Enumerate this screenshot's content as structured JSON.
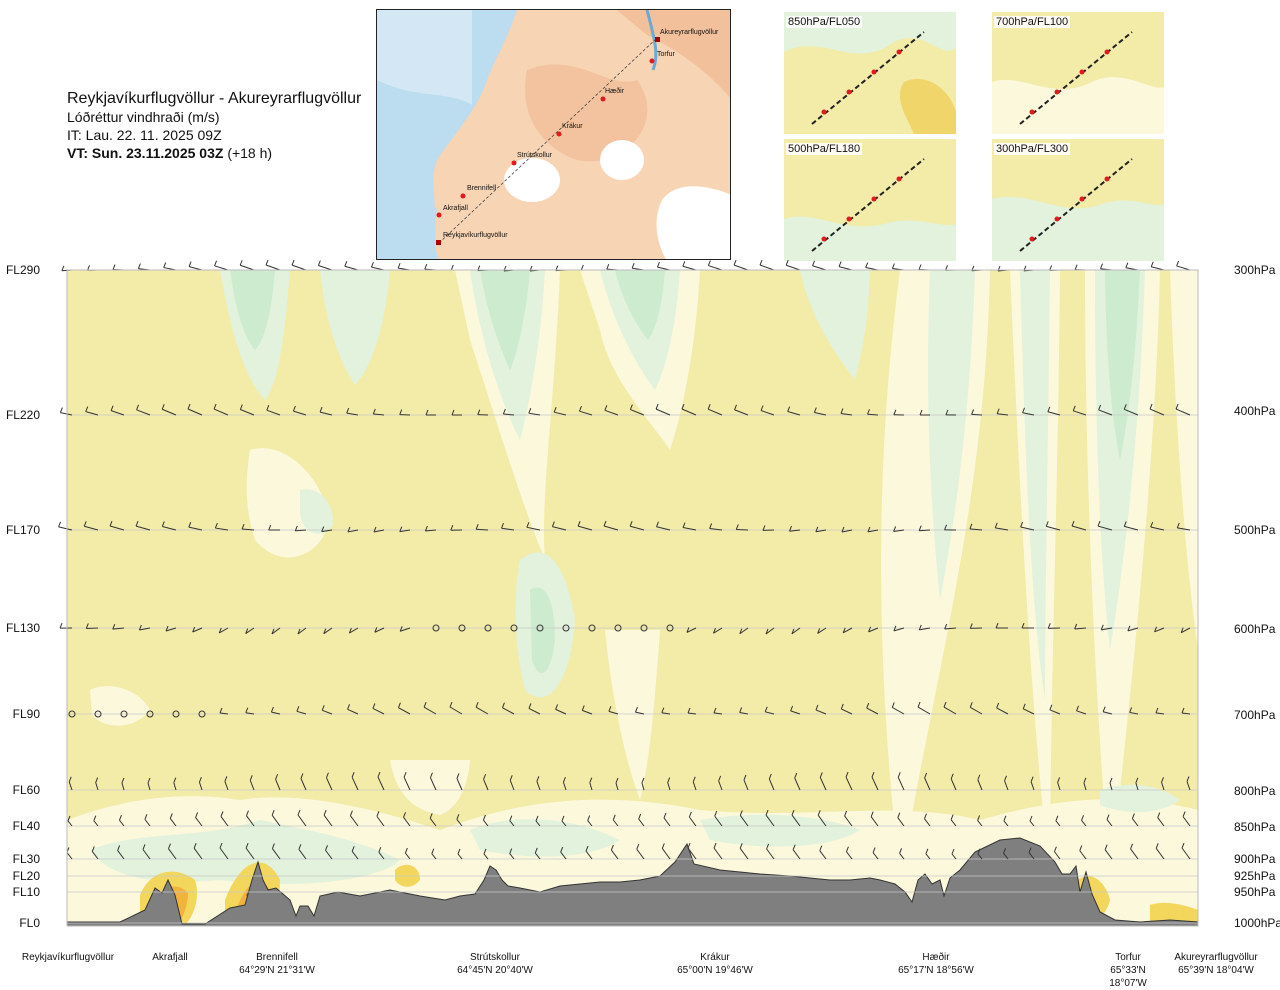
{
  "header": {
    "route": "Reykjavíkurflugvöllur - Akureyrarflugvöllur",
    "variable": "Lóðréttur vindhraði (m/s)",
    "issue_time": "IT: Lau. 22. 11. 2025 09Z",
    "valid_time_bold": "VT: Sun. 23.11.2025 03Z",
    "valid_time_offset": "(+18 h)"
  },
  "map": {
    "waypoints": [
      "Akureyrarflugvöllur",
      "Torfur",
      "Hæðir",
      "Krákur",
      "Strútskollur",
      "Brennifell",
      "Akrafjall",
      "Reykjavíkurflugvöllur"
    ]
  },
  "panels": [
    {
      "label": "850hPa/FL050"
    },
    {
      "label": "700hPa/FL100"
    },
    {
      "label": "500hPa/FL180"
    },
    {
      "label": "300hPa/FL300"
    }
  ],
  "levels_left": [
    "FL290",
    "FL220",
    "FL170",
    "FL130",
    "FL90",
    "FL60",
    "FL40",
    "FL30",
    "FL20",
    "FL10",
    "FL0"
  ],
  "levels_right": [
    "300hPa",
    "400hPa",
    "500hPa",
    "600hPa",
    "700hPa",
    "800hPa",
    "850hPa",
    "900hPa",
    "925hPa",
    "950hPa",
    "1000hPa"
  ],
  "places": [
    {
      "name": "Reykjavíkurflugvöllur",
      "coord": ""
    },
    {
      "name": "Akrafjall",
      "coord": ""
    },
    {
      "name": "Brennifell",
      "coord": "64°29'N 21°31'W"
    },
    {
      "name": "Strútskollur",
      "coord": "64°45'N 20°40'W"
    },
    {
      "name": "Krákur",
      "coord": "65°00'N 19°46'W"
    },
    {
      "name": "Hæðir",
      "coord": "65°17'N 18°56'W"
    },
    {
      "name": "Torfur",
      "coord": "65°33'N 18°07'W"
    },
    {
      "name": "Akureyrarflugvöllur",
      "coord": "65°39'N 18°04'W"
    }
  ],
  "colors": {
    "yellow": "#f3eba8",
    "light_yellow": "#fbf8dc",
    "cream": "#fdfdf2",
    "light_green": "#e2f2dc",
    "green": "#cdebcf",
    "orange": "#f0b43c",
    "terrain": "#7f7f7f",
    "sea": "#bcdcef",
    "land": "#f5c9a3"
  }
}
